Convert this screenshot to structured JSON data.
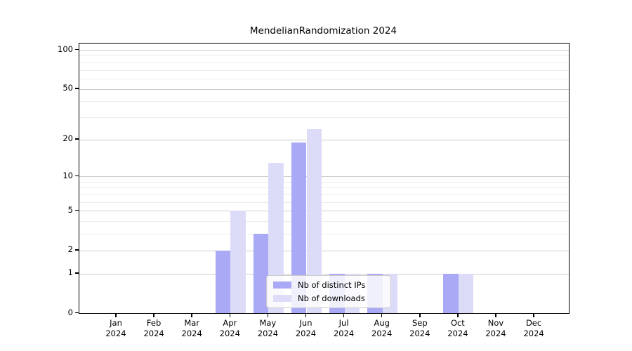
{
  "chart_data": {
    "type": "bar",
    "title": "MendelianRandomization 2024",
    "months": [
      "Jan",
      "Feb",
      "Mar",
      "Apr",
      "May",
      "Jun",
      "Jul",
      "Aug",
      "Sep",
      "Oct",
      "Nov",
      "Dec"
    ],
    "year": "2024",
    "series": [
      {
        "name": "Nb of distinct IPs",
        "color": "#a9a9f5",
        "values": [
          0,
          0,
          0,
          2,
          3,
          19,
          1,
          1,
          0,
          1,
          0,
          0
        ]
      },
      {
        "name": "Nb of downloads",
        "color": "#dcdcf8",
        "values": [
          0,
          0,
          0,
          5,
          13,
          24,
          1,
          1,
          0,
          1,
          0,
          0
        ]
      }
    ],
    "y_axis": {
      "scale": "log1p",
      "major_ticks": [
        0,
        1,
        2,
        5,
        10,
        20,
        50,
        100
      ],
      "minor_gridlines": [
        3,
        4,
        6,
        7,
        8,
        9,
        30,
        40,
        60,
        70,
        80,
        90
      ],
      "ylim": [
        0,
        100
      ]
    },
    "grid": "horizontal",
    "legend_position": "inside-bottom-center"
  }
}
